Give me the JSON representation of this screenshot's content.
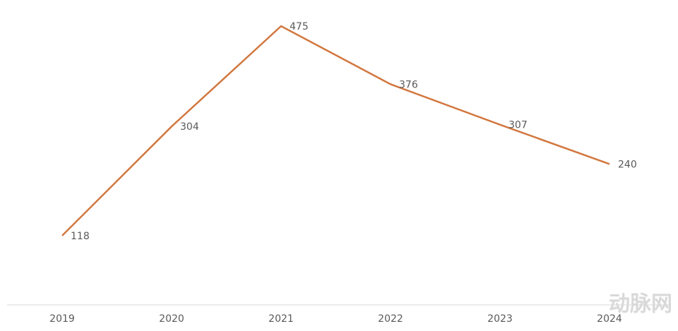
{
  "chart_data": {
    "type": "line",
    "categories": [
      "2019",
      "2020",
      "2021",
      "2022",
      "2023",
      "2024"
    ],
    "series": [
      {
        "color": "#d2773f",
        "values": [
          118,
          304,
          475,
          376,
          307,
          240
        ]
      }
    ],
    "watermark": "动脉网"
  }
}
